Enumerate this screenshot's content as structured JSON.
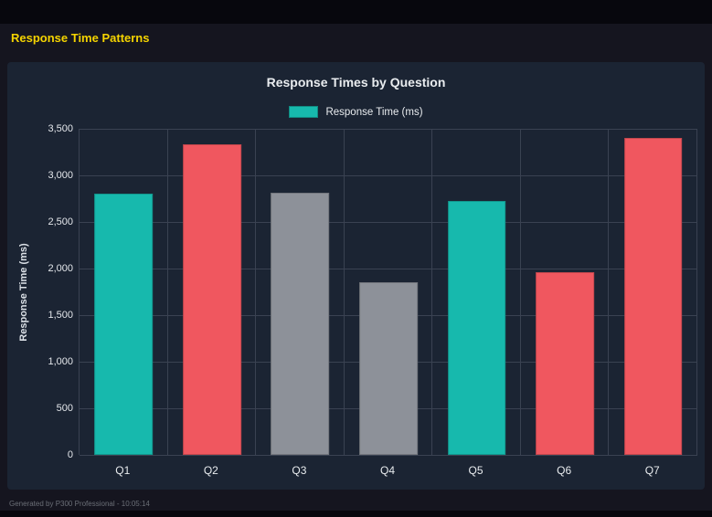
{
  "page": {
    "title": "Response Time Patterns",
    "footer": "Generated by P300 Professional - 10:05:14",
    "colors": {
      "heading": "#f5d400",
      "background": "#15151f",
      "panel": "#1b2433"
    }
  },
  "chart_data": {
    "type": "bar",
    "title": "Response Times by Question",
    "legend": [
      {
        "label": "Response Time (ms)",
        "color": "#17b9ad"
      }
    ],
    "legend_position": "top",
    "categories": [
      "Q1",
      "Q2",
      "Q3",
      "Q4",
      "Q5",
      "Q6",
      "Q7"
    ],
    "values": [
      2800,
      3330,
      2810,
      1850,
      2730,
      1960,
      3400
    ],
    "bar_colors": [
      "#17b9ad",
      "#f0575f",
      "#8d9199",
      "#8d9199",
      "#17b9ad",
      "#f0575f",
      "#f0575f"
    ],
    "xlabel": "",
    "ylabel": "Response Time (ms)",
    "ylim": [
      0,
      3500
    ],
    "yticks": [
      "3,500",
      "3,000",
      "2,500",
      "2,000",
      "1,500",
      "1,000",
      "500",
      "0"
    ],
    "grid": true
  }
}
